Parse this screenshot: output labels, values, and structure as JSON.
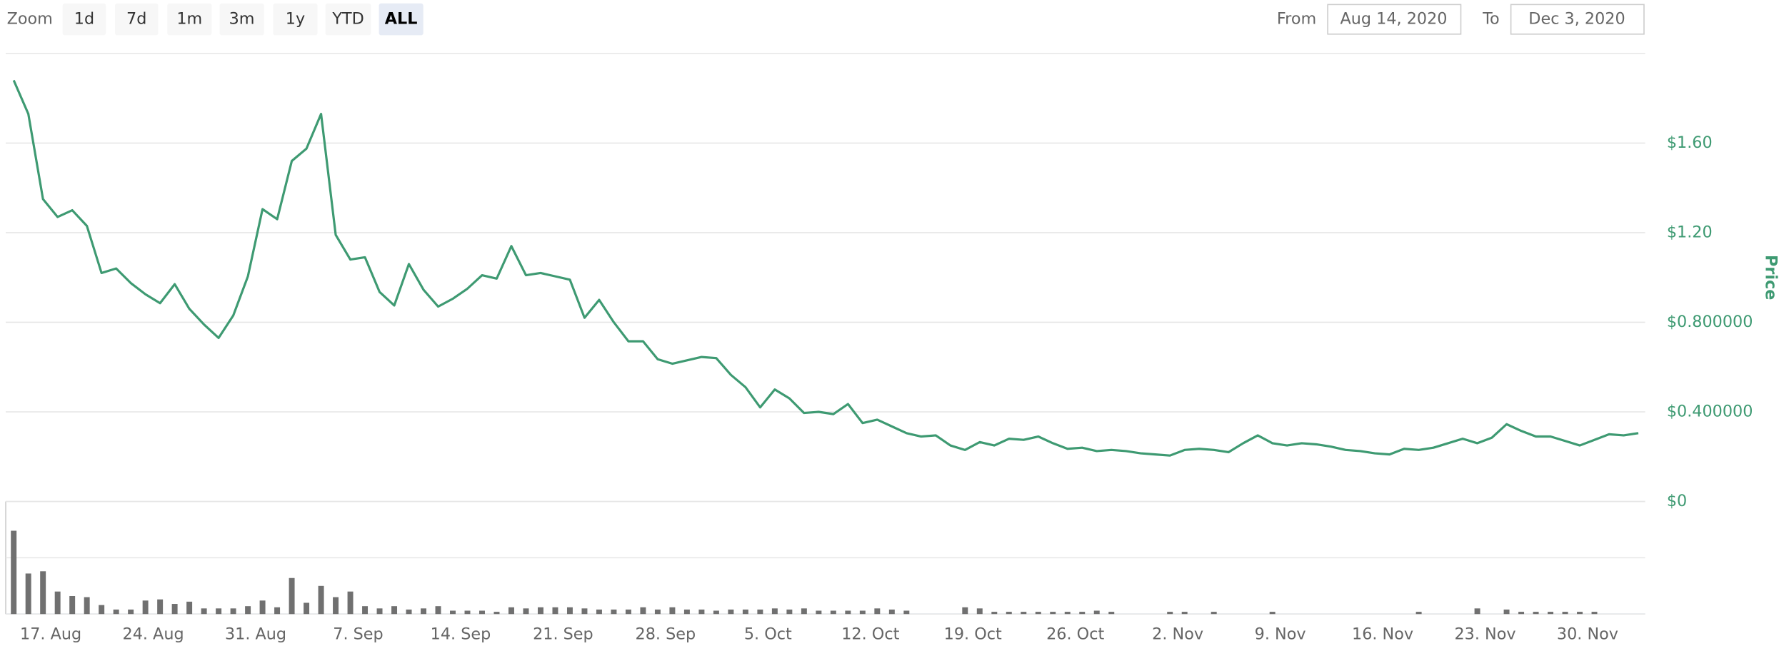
{
  "range_selector": {
    "zoom_label": "Zoom",
    "buttons": [
      "1d",
      "7d",
      "1m",
      "3m",
      "1y",
      "YTD",
      "ALL"
    ],
    "selected_index": 6,
    "from_label": "From",
    "from": "Aug 14, 2020",
    "to_label": "To",
    "to": "Dec 3, 2020"
  },
  "chart_data": {
    "type": "line",
    "y_axis_title": "Price",
    "grid": true,
    "x": [
      "14. Aug",
      "15. Aug",
      "16. Aug",
      "17. Aug",
      "18. Aug",
      "19. Aug",
      "20. Aug",
      "21. Aug",
      "22. Aug",
      "23. Aug",
      "24. Aug",
      "25. Aug",
      "26. Aug",
      "27. Aug",
      "28. Aug",
      "29. Aug",
      "30. Aug",
      "31. Aug",
      "1. Sep",
      "2. Sep",
      "3. Sep",
      "4. Sep",
      "5. Sep",
      "6. Sep",
      "7. Sep",
      "8. Sep",
      "9. Sep",
      "10. Sep",
      "11. Sep",
      "12. Sep",
      "13. Sep",
      "14. Sep",
      "15. Sep",
      "16. Sep",
      "17. Sep",
      "18. Sep",
      "19. Sep",
      "20. Sep",
      "21. Sep",
      "22. Sep",
      "23. Sep",
      "24. Sep",
      "25. Sep",
      "26. Sep",
      "27. Sep",
      "28. Sep",
      "29. Sep",
      "30. Sep",
      "1. Oct",
      "2. Oct",
      "3. Oct",
      "4. Oct",
      "5. Oct",
      "6. Oct",
      "7. Oct",
      "8. Oct",
      "9. Oct",
      "10. Oct",
      "11. Oct",
      "12. Oct",
      "13. Oct",
      "14. Oct",
      "15. Oct",
      "16. Oct",
      "17. Oct",
      "18. Oct",
      "19. Oct",
      "20. Oct",
      "21. Oct",
      "22. Oct",
      "23. Oct",
      "24. Oct",
      "25. Oct",
      "26. Oct",
      "27. Oct",
      "28. Oct",
      "29. Oct",
      "30. Oct",
      "31. Oct",
      "1. Nov",
      "2. Nov",
      "3. Nov",
      "4. Nov",
      "5. Nov",
      "6. Nov",
      "7. Nov",
      "8. Nov",
      "9. Nov",
      "10. Nov",
      "11. Nov",
      "12. Nov",
      "13. Nov",
      "14. Nov",
      "15. Nov",
      "16. Nov",
      "17. Nov",
      "18. Nov",
      "19. Nov",
      "20. Nov",
      "21. Nov",
      "22. Nov",
      "23. Nov",
      "24. Nov",
      "25. Nov",
      "26. Nov",
      "27. Nov",
      "28. Nov",
      "29. Nov",
      "30. Nov",
      "1. Dec",
      "2. Dec",
      "3. Dec"
    ],
    "xticks": [
      "17. Aug",
      "24. Aug",
      "31. Aug",
      "7. Sep",
      "14. Sep",
      "21. Sep",
      "28. Sep",
      "5. Oct",
      "12. Oct",
      "19. Oct",
      "26. Oct",
      "2. Nov",
      "9. Nov",
      "16. Nov",
      "23. Nov",
      "30. Nov"
    ],
    "series": [
      {
        "color": "#3e9a72",
        "values": [
          1.88,
          1.73,
          1.35,
          1.27,
          1.3,
          1.23,
          1.02,
          1.04,
          0.975,
          0.925,
          0.885,
          0.97,
          0.86,
          0.79,
          0.73,
          0.83,
          1.005,
          1.305,
          1.26,
          1.52,
          1.575,
          1.73,
          1.19,
          1.08,
          1.09,
          0.935,
          0.875,
          1.06,
          0.945,
          0.87,
          0.905,
          0.95,
          1.01,
          0.995,
          1.14,
          1.01,
          1.02,
          1.005,
          0.99,
          0.82,
          0.9,
          0.8,
          0.715,
          0.715,
          0.635,
          0.615,
          0.63,
          0.645,
          0.64,
          0.565,
          0.51,
          0.42,
          0.5,
          0.46,
          0.395,
          0.4,
          0.39,
          0.435,
          0.35,
          0.365,
          0.335,
          0.305,
          0.29,
          0.295,
          0.25,
          0.23,
          0.265,
          0.25,
          0.28,
          0.275,
          0.29,
          0.26,
          0.235,
          0.24,
          0.225,
          0.23,
          0.225,
          0.215,
          0.21,
          0.205,
          0.23,
          0.235,
          0.23,
          0.22,
          0.26,
          0.295,
          0.26,
          0.25,
          0.26,
          0.255,
          0.245,
          0.23,
          0.225,
          0.215,
          0.21,
          0.235,
          0.23,
          0.24,
          0.26,
          0.28,
          0.26,
          0.285,
          0.345,
          0.315,
          0.29,
          0.29,
          0.27,
          0.25,
          0.275,
          0.3,
          0.295,
          0.305
        ]
      }
    ],
    "ylim": [
      0,
      2.0
    ],
    "yticks": [
      {
        "value": 0,
        "label": "$0"
      },
      {
        "value": 0.4,
        "label": "$0.400000"
      },
      {
        "value": 0.8,
        "label": "$0.800000"
      },
      {
        "value": 1.2,
        "label": "$1.20"
      },
      {
        "value": 1.6,
        "label": "$1.60"
      }
    ],
    "volume": {
      "color": "#707070",
      "ylim": [
        0,
        100
      ],
      "yticks": [
        0,
        50,
        100
      ],
      "values": [
        74,
        36,
        38,
        20,
        16,
        15,
        8,
        4,
        4,
        12,
        13,
        9,
        11,
        5,
        5,
        5,
        7,
        12,
        6,
        32,
        10,
        25,
        15,
        20,
        7,
        5,
        7,
        4,
        5,
        7,
        3,
        3,
        3,
        2,
        6,
        5,
        6,
        6,
        6,
        5,
        4,
        4,
        4,
        6,
        4,
        6,
        4,
        4,
        3,
        4,
        4,
        4,
        5,
        4,
        5,
        3,
        3,
        3,
        3,
        5,
        4,
        3,
        0,
        0,
        0,
        6,
        5,
        2,
        2,
        2,
        2,
        2,
        2,
        2,
        3,
        2,
        0,
        0,
        0,
        2,
        2,
        0,
        2,
        0,
        0,
        0,
        2,
        0,
        0,
        0,
        0,
        0,
        0,
        0,
        0,
        0,
        2,
        0,
        0,
        0,
        5,
        0,
        4,
        2,
        2,
        2,
        2,
        2,
        2,
        0,
        0,
        0
      ]
    }
  }
}
